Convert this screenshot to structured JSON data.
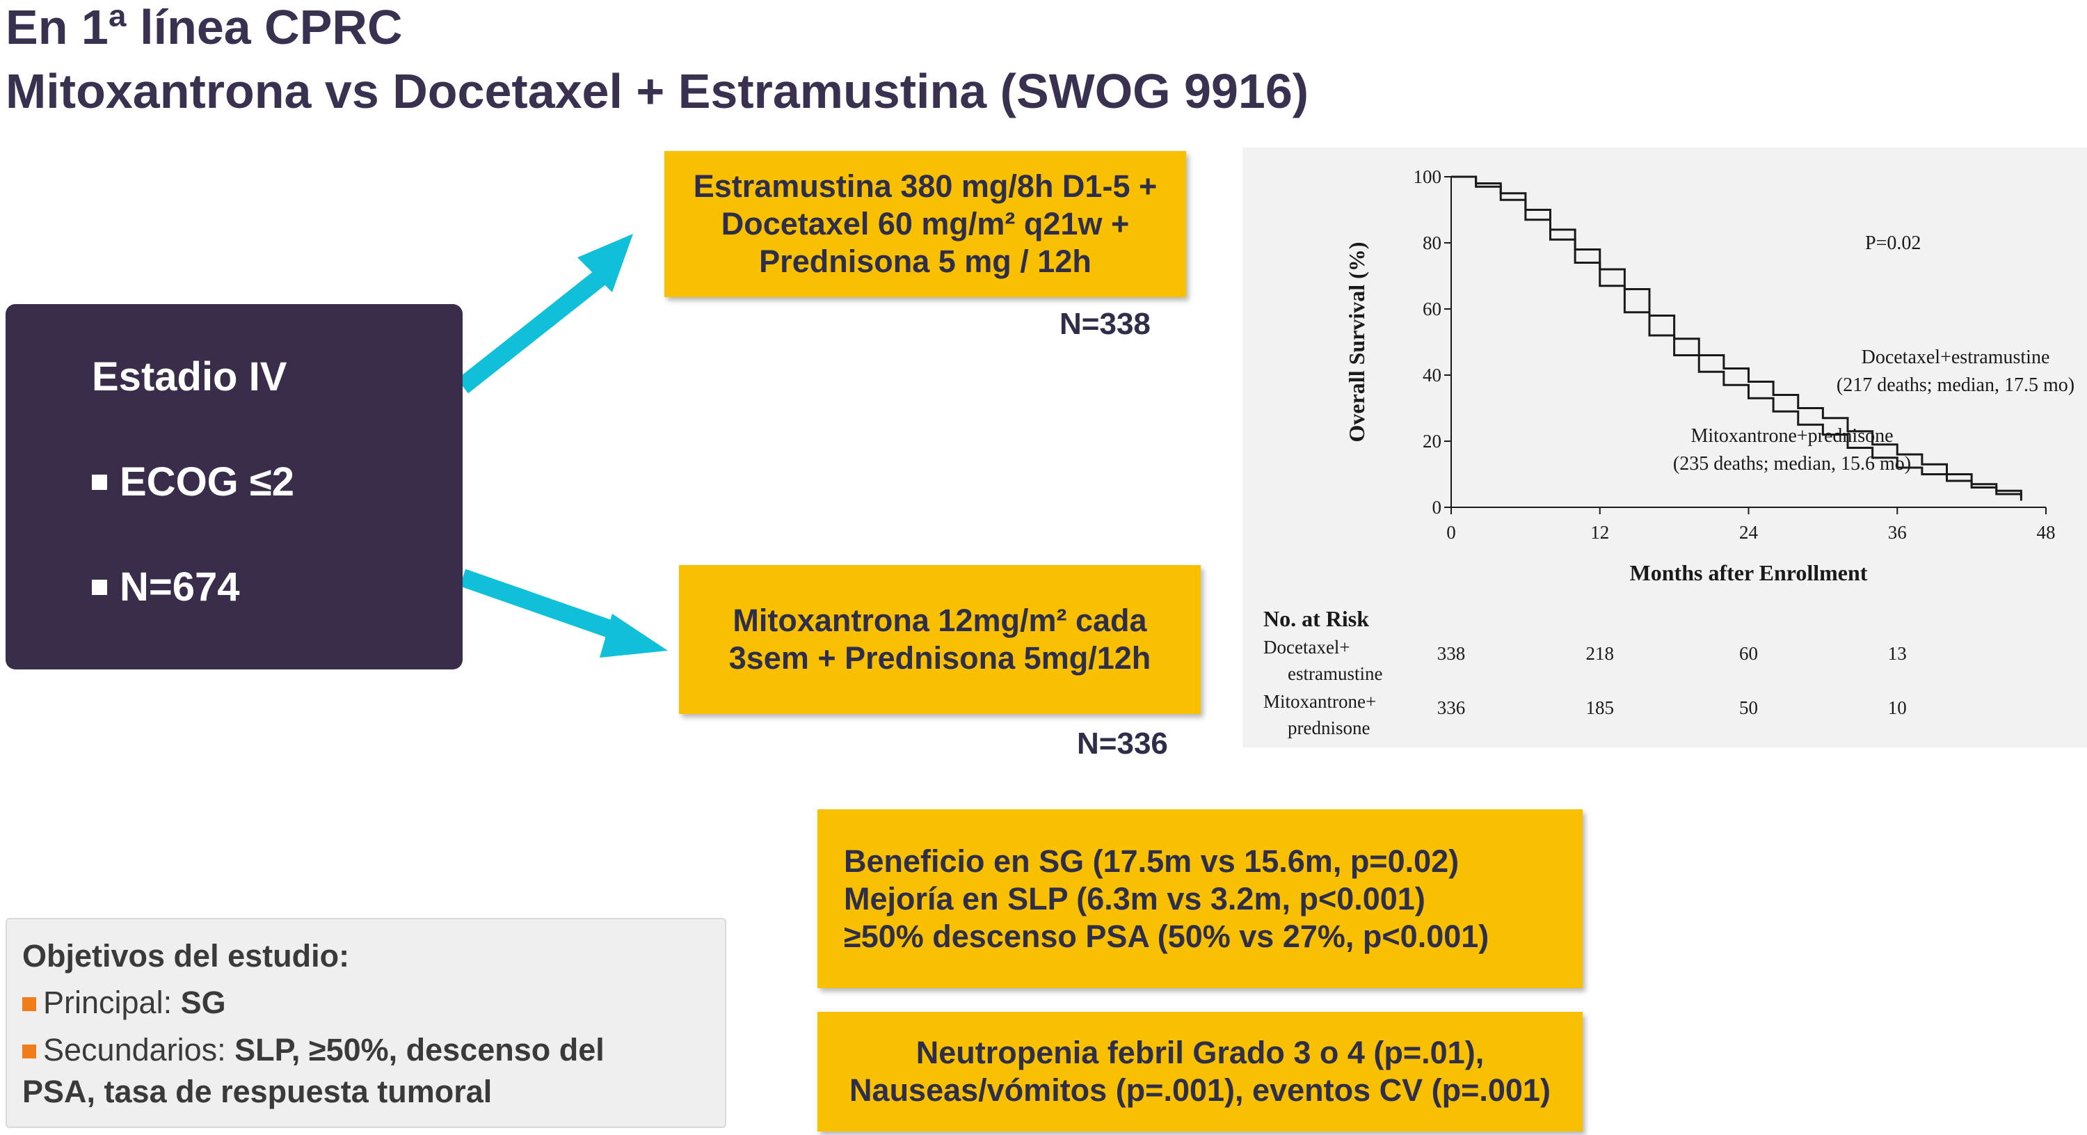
{
  "slide": {
    "title_line1": "En 1ª línea CPRC",
    "title_line2": "Mitoxantrona vs Docetaxel + Estramustina (SWOG 9916)"
  },
  "population": {
    "heading": "Estadio IV",
    "items": [
      "ECOG ≤2",
      "N=674"
    ]
  },
  "arm_docetaxel": {
    "lines": [
      "Estramustina 380 mg/8h D1-5 +",
      "Docetaxel 60 mg/m² q21w +",
      "Prednisona 5 mg / 12h"
    ],
    "n_label": "N=338"
  },
  "arm_mitoxantrone": {
    "lines": [
      "Mitoxantrona 12mg/m² cada",
      "3sem + Prednisona 5mg/12h"
    ],
    "n_label": "N=336"
  },
  "results": {
    "efficacy_lines": [
      "Beneficio en SG (17.5m vs 15.6m, p=0.02)",
      "Mejoría en SLP (6.3m vs 3.2m, p<0.001)",
      "≥50% descenso PSA (50% vs 27%, p<0.001)"
    ],
    "toxicity_lines": [
      "Neutropenia febril Grado 3 o 4 (p=.01),",
      "Nauseas/vómitos (p=.001), eventos CV (p=.001)"
    ]
  },
  "objectives": {
    "heading": "Objetivos del estudio:",
    "primary_label": "Principal: ",
    "primary_value": "SG",
    "secondary_label": "Secundarios: ",
    "secondary_value_line1": "SLP, ≥50%, descenso del",
    "secondary_value_line2": "PSA, tasa de respuesta tumoral"
  },
  "chart_data": {
    "type": "line",
    "xlabel": "Months after Enrollment",
    "ylabel": "Overall Survival (%)",
    "xlim": [
      0,
      48
    ],
    "ylim": [
      0,
      100
    ],
    "xticks": [
      0,
      12,
      24,
      36,
      48
    ],
    "yticks": [
      0,
      20,
      40,
      60,
      80,
      100
    ],
    "p_value_text": "P=0.02",
    "series": [
      {
        "name": "Docetaxel+estramustine",
        "annotation": "(217 deaths; median, 17.5 mo)",
        "x": [
          0,
          2,
          4,
          6,
          8,
          10,
          12,
          14,
          16,
          18,
          20,
          22,
          24,
          26,
          28,
          30,
          32,
          34,
          36,
          38,
          40,
          42,
          44,
          46
        ],
        "y": [
          100,
          98,
          95,
          90,
          84,
          78,
          72,
          66,
          58,
          51,
          46,
          42,
          38,
          34,
          30,
          27,
          23,
          19,
          16,
          13,
          10,
          7,
          5,
          3
        ]
      },
      {
        "name": "Mitoxantrone+prednisone",
        "annotation": "(235 deaths; median, 15.6 mo)",
        "x": [
          0,
          2,
          4,
          6,
          8,
          10,
          12,
          14,
          16,
          18,
          20,
          22,
          24,
          26,
          28,
          30,
          32,
          34,
          36,
          38,
          40,
          42,
          44,
          46
        ],
        "y": [
          100,
          97,
          93,
          87,
          81,
          74,
          67,
          59,
          52,
          46,
          41,
          37,
          33,
          29,
          25,
          22,
          18,
          15,
          12,
          10,
          8,
          6,
          4,
          2
        ]
      }
    ],
    "risk_table": {
      "heading": "No. at Risk",
      "rows": [
        {
          "label_line1": "Docetaxel+",
          "label_line2": "estramustine",
          "values": [
            338,
            218,
            60,
            13
          ]
        },
        {
          "label_line1": "Mitoxantrone+",
          "label_line2": "prednisone",
          "values": [
            336,
            185,
            50,
            10
          ]
        }
      ]
    },
    "colors": {
      "line": "#1a1a1a",
      "background": "#f2f2f2"
    }
  },
  "colors": {
    "accent_yellow": "#f8c000",
    "dark_purple": "#3a2d4c",
    "arrow_cyan": "#0fc0d8",
    "bullet_orange": "#f07c1a"
  }
}
